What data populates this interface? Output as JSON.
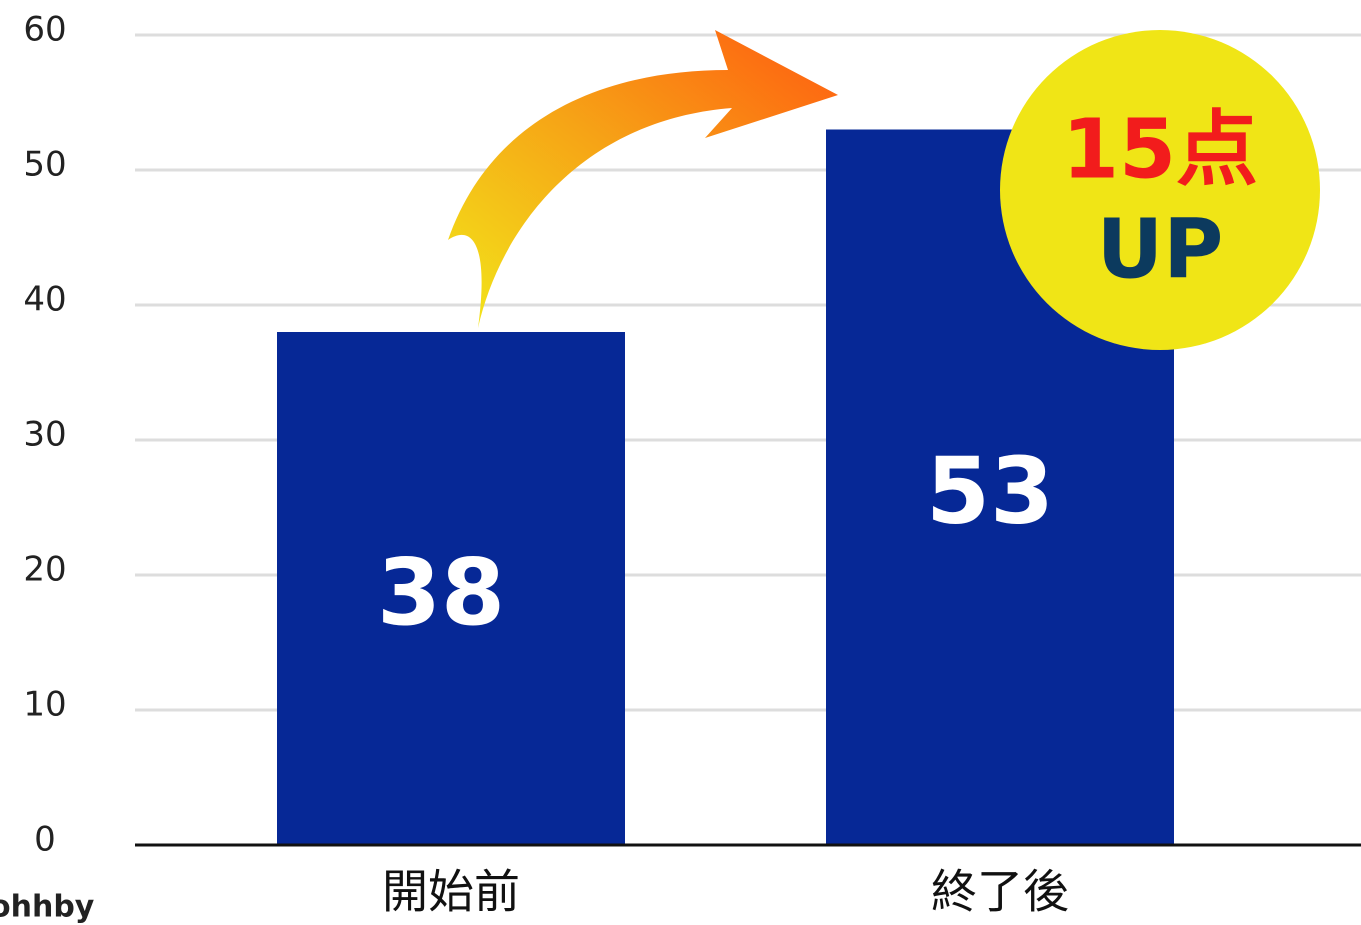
{
  "chart_data": {
    "type": "bar",
    "categories": [
      "開始前",
      "終了後"
    ],
    "values": [
      38,
      53
    ],
    "color": "#062896",
    "ylim": [
      0,
      60
    ],
    "yticks": [
      0,
      10,
      20,
      30,
      40,
      50,
      60
    ],
    "grid": true,
    "annotations": [
      "15点",
      "UP"
    ],
    "watermark": "ohhby"
  }
}
